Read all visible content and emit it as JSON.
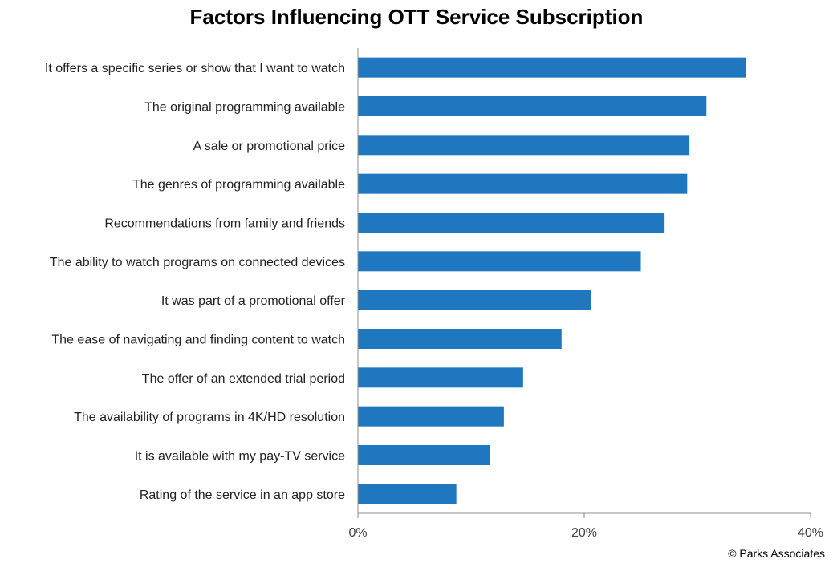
{
  "chart_data": {
    "type": "bar",
    "orientation": "horizontal",
    "title": "Factors Influencing OTT Service Subscription",
    "categories": [
      "It offers a specific series or show that I  want to watch",
      "The original programming available",
      "A sale or promotional price",
      "The genres of programming available",
      "Recommendations from family and friends",
      "The ability to watch programs on connected devices",
      "It was part of a promotional offer",
      "The ease of navigating and finding content to watch",
      "The offer of an extended trial period",
      "The availability of programs in 4K/HD resolution",
      "It is available with my pay-TV service",
      "Rating of the service in an app store"
    ],
    "values": [
      34.3,
      30.8,
      29.3,
      29.1,
      27.1,
      25.0,
      20.6,
      18.0,
      14.6,
      12.9,
      11.7,
      8.7
    ],
    "xlim": [
      0,
      40
    ],
    "xticks": [
      "0%",
      "20%",
      "40%"
    ],
    "bar_color": "#1f77c0",
    "grid": false
  },
  "credit": "© Parks Associates"
}
